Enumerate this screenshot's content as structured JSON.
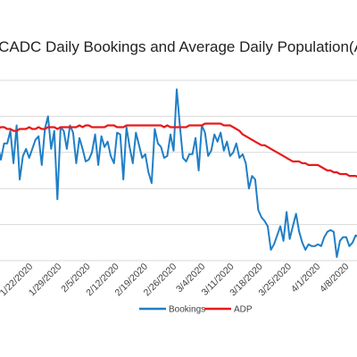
{
  "chart_data": {
    "type": "line",
    "title": "PCADC Daily Bookings and Average Daily Population(ADP)",
    "xlabel": "",
    "ylabel": "",
    "x_tick_labels": [
      "1/22/2020",
      "1/29/2020",
      "2/5/2020",
      "2/12/2020",
      "2/19/2020",
      "2/26/2020",
      "3/4/2020",
      "3/11/2020",
      "3/18/2020",
      "3/25/2020",
      "4/1/2020",
      "4/8/2020"
    ],
    "grid": true,
    "legend_position": "bottom",
    "series": [
      {
        "name": "Bookings",
        "color": "#1f7fc7",
        "values": [
          0.27,
          0.64,
          0.56,
          0.65,
          0.65,
          0.72,
          0.54,
          0.75,
          0.45,
          0.58,
          0.62,
          0.57,
          0.62,
          0.67,
          0.69,
          0.53,
          0.73,
          0.8,
          0.62,
          0.72,
          0.34,
          0.74,
          0.72,
          0.62,
          0.75,
          0.71,
          0.54,
          0.68,
          0.62,
          0.55,
          0.56,
          0.6,
          0.7,
          0.53,
          0.69,
          0.63,
          0.66,
          0.58,
          0.54,
          0.71,
          0.7,
          0.45,
          0.74,
          0.63,
          0.54,
          0.71,
          0.64,
          0.57,
          0.59,
          0.49,
          0.43,
          0.73,
          0.65,
          0.63,
          0.57,
          0.58,
          0.7,
          0.61,
          0.95,
          0.75,
          0.57,
          0.55,
          0.59,
          0.59,
          0.68,
          0.5,
          0.75,
          0.71,
          0.58,
          0.61,
          0.7,
          0.66,
          0.71,
          0.61,
          0.66,
          0.58,
          0.6,
          0.65,
          0.57,
          0.59,
          0.54,
          0.4,
          0.47,
          0.45,
          0.28,
          0.24,
          0.22,
          0.19,
          0.06,
          0.09,
          0.14,
          0.19,
          0.11,
          0.27,
          0.12,
          0.19,
          0.26,
          0.16,
          0.1,
          0.06,
          0.09,
          0.08,
          0.08,
          0.09,
          0.08,
          0.13,
          0.16,
          0.17,
          0.16,
          0.02,
          0.11,
          0.13,
          0.13,
          0.08,
          0.1,
          0.14,
          0.13
        ]
      },
      {
        "name": "ADP",
        "color": "#e8191b",
        "values": [
          0.74,
          0.73,
          0.74,
          0.74,
          0.73,
          0.73,
          0.72,
          0.72,
          0.73,
          0.73,
          0.73,
          0.74,
          0.73,
          0.73,
          0.74,
          0.73,
          0.73,
          0.74,
          0.74,
          0.74,
          0.73,
          0.74,
          0.74,
          0.74,
          0.74,
          0.74,
          0.74,
          0.75,
          0.74,
          0.75,
          0.75,
          0.74,
          0.74,
          0.74,
          0.74,
          0.74,
          0.75,
          0.75,
          0.75,
          0.74,
          0.74,
          0.74,
          0.75,
          0.75,
          0.75,
          0.75,
          0.75,
          0.75,
          0.75,
          0.75,
          0.75,
          0.75,
          0.75,
          0.75,
          0.74,
          0.75,
          0.74,
          0.74,
          0.74,
          0.74,
          0.74,
          0.74,
          0.75,
          0.75,
          0.75,
          0.75,
          0.75,
          0.76,
          0.76,
          0.76,
          0.76,
          0.76,
          0.76,
          0.75,
          0.75,
          0.75,
          0.74,
          0.73,
          0.72,
          0.7,
          0.69,
          0.68,
          0.67,
          0.66,
          0.65,
          0.64,
          0.64,
          0.63,
          0.62,
          0.61,
          0.6,
          0.59,
          0.58,
          0.57,
          0.56,
          0.55,
          0.55,
          0.55,
          0.54,
          0.54,
          0.53,
          0.53,
          0.53,
          0.53,
          0.52,
          0.51,
          0.5,
          0.5,
          0.49,
          0.49,
          0.48,
          0.48,
          0.48,
          0.47,
          0.47,
          0.47,
          0.46
        ]
      }
    ]
  }
}
